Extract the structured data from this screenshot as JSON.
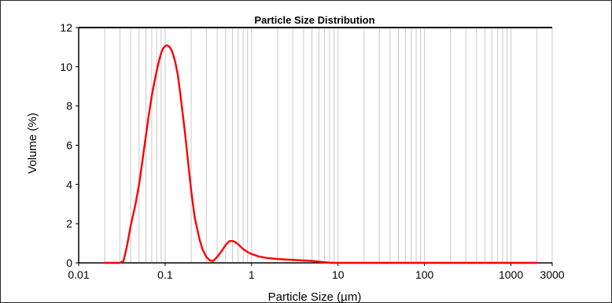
{
  "chart_data": {
    "type": "line",
    "title": "Particle Size Distribution",
    "xlabel": "Particle Size (µm)",
    "ylabel": "Volume (%)",
    "x_scale": "log",
    "xlim": [
      0.01,
      3000
    ],
    "ylim": [
      0,
      12
    ],
    "x_ticks": [
      "0.01",
      "0.1",
      "1",
      "10",
      "100",
      "1000",
      "3000"
    ],
    "y_ticks": [
      "0",
      "2",
      "4",
      "6",
      "8",
      "10",
      "12"
    ],
    "grid": "vertical",
    "colors": {
      "series": "#ff0000",
      "grid": "#c8c8c8",
      "axis": "#000000"
    },
    "series": [
      {
        "x": [
          0.02,
          0.025,
          0.03,
          0.033,
          0.036,
          0.04,
          0.045,
          0.05,
          0.055,
          0.06,
          0.065,
          0.07,
          0.075,
          0.08,
          0.085,
          0.09,
          0.095,
          0.1,
          0.105,
          0.11,
          0.115,
          0.12,
          0.13,
          0.14,
          0.15,
          0.17,
          0.19,
          0.2,
          0.22,
          0.25,
          0.27,
          0.3,
          0.33,
          0.36,
          0.4,
          0.45,
          0.5,
          0.55,
          0.6,
          0.65,
          0.7,
          0.75,
          0.8,
          0.9,
          1.0,
          1.2,
          1.5,
          2,
          3,
          4,
          5,
          6,
          7,
          8,
          9,
          10,
          20,
          50,
          100,
          500,
          1000,
          2000
        ],
        "values": [
          0,
          0,
          0,
          0.1,
          0.8,
          1.9,
          2.9,
          4.0,
          5.3,
          6.5,
          7.6,
          8.5,
          9.2,
          9.8,
          10.3,
          10.7,
          10.95,
          11.05,
          11.1,
          11.05,
          10.95,
          10.8,
          10.3,
          9.6,
          8.6,
          6.6,
          4.6,
          3.7,
          2.3,
          1.2,
          0.7,
          0.3,
          0.12,
          0.1,
          0.3,
          0.6,
          0.9,
          1.1,
          1.12,
          1.05,
          0.95,
          0.82,
          0.7,
          0.55,
          0.45,
          0.33,
          0.25,
          0.2,
          0.15,
          0.12,
          0.1,
          0.06,
          0.03,
          0.01,
          0.0,
          0,
          0,
          0,
          0,
          0,
          0,
          0
        ]
      }
    ]
  }
}
